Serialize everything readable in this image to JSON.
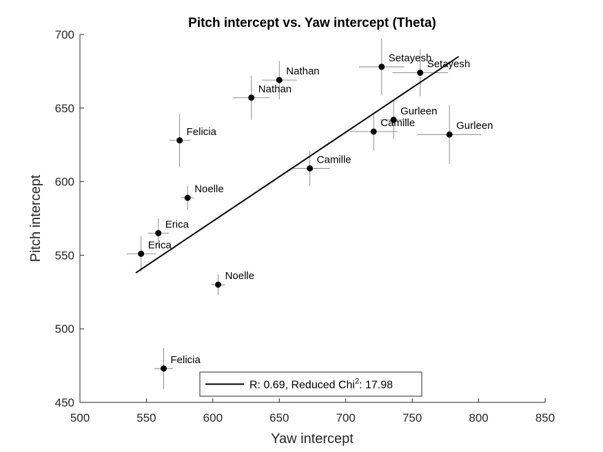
{
  "chart_data": {
    "type": "scatter",
    "title": "Pitch intercept vs. Yaw intercept (Theta)",
    "xlabel": "Yaw intercept",
    "ylabel": "Pitch intercept",
    "xlim": [
      500,
      850
    ],
    "ylim": [
      450,
      700
    ],
    "xticks": [
      500,
      550,
      600,
      650,
      700,
      750,
      800,
      850
    ],
    "yticks": [
      450,
      500,
      550,
      600,
      650,
      700
    ],
    "grid": false,
    "points": [
      {
        "label": "Nathan",
        "x": 650,
        "y": 669,
        "xerr": 13,
        "yerr": 13
      },
      {
        "label": "Nathan",
        "x": 629,
        "y": 657,
        "xerr": 14,
        "yerr": 15
      },
      {
        "label": "Setayesh",
        "x": 727,
        "y": 678,
        "xerr": 17,
        "yerr": 19
      },
      {
        "label": "Setayesh",
        "x": 756,
        "y": 674,
        "xerr": 21,
        "yerr": 16
      },
      {
        "label": "Gurleen",
        "x": 736,
        "y": 642,
        "xerr": 10,
        "yerr": 13
      },
      {
        "label": "Gurleen",
        "x": 778,
        "y": 632,
        "xerr": 24,
        "yerr": 20
      },
      {
        "label": "Camille",
        "x": 721,
        "y": 634,
        "xerr": 18,
        "yerr": 13
      },
      {
        "label": "Camille",
        "x": 673,
        "y": 609,
        "xerr": 15,
        "yerr": 12
      },
      {
        "label": "Felicia",
        "x": 575,
        "y": 628,
        "xerr": 8,
        "yerr": 18
      },
      {
        "label": "Felicia",
        "x": 563,
        "y": 473,
        "xerr": 7,
        "yerr": 14
      },
      {
        "label": "Noelle",
        "x": 581,
        "y": 589,
        "xerr": 5,
        "yerr": 8
      },
      {
        "label": "Noelle",
        "x": 604,
        "y": 530,
        "xerr": 5,
        "yerr": 7
      },
      {
        "label": "Erica",
        "x": 559,
        "y": 565,
        "xerr": 8,
        "yerr": 10
      },
      {
        "label": "Erica",
        "x": 546,
        "y": 551,
        "xerr": 11,
        "yerr": 12
      }
    ],
    "fit_line": {
      "x": [
        542,
        785
      ],
      "y": [
        538,
        685
      ]
    },
    "legend": {
      "placement": "bottom-center",
      "entries": [
        {
          "prefix": "R: 0.69, Reduced Chi",
          "superscript": "2",
          "suffix": ": 17.98"
        }
      ]
    },
    "colors": {
      "marker": "#000000",
      "errorbar": "#7f7f7f",
      "fit": "#000000",
      "axis": "#262626"
    }
  }
}
